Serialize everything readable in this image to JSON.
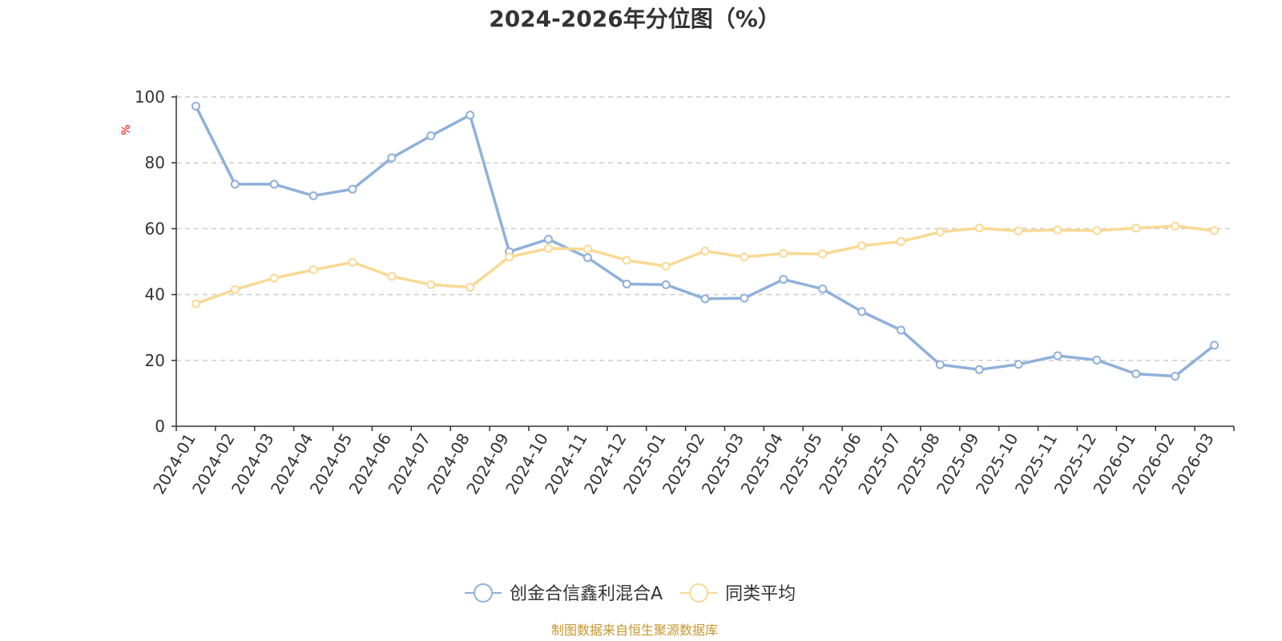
{
  "chart_data": {
    "type": "line",
    "title": "2024-2026年分位图（%）",
    "ylabel": "%",
    "ylim": [
      0,
      100
    ],
    "yticks": [
      0,
      20,
      40,
      60,
      80,
      100
    ],
    "grid": true,
    "legend_position": "bottom-center",
    "categories": [
      "2024-01",
      "2024-02",
      "2024-03",
      "2024-04",
      "2024-05",
      "2024-06",
      "2024-07",
      "2024-08",
      "2024-09",
      "2024-10",
      "2024-11",
      "2024-12",
      "2025-01",
      "2025-02",
      "2025-03",
      "2025-04",
      "2025-05",
      "2025-06",
      "2025-07",
      "2025-08",
      "2025-09",
      "2025-10",
      "2025-11",
      "2025-12",
      "2026-01",
      "2026-02",
      "2026-03"
    ],
    "series": [
      {
        "name": "创金合信鑫利混合A",
        "color": "#8fb0da",
        "values": [
          97.2,
          73.5,
          73.5,
          70.0,
          72.0,
          81.5,
          88.2,
          94.5,
          53.0,
          56.8,
          51.2,
          43.2,
          43.0,
          38.7,
          38.9,
          44.6,
          41.7,
          34.8,
          29.2,
          18.7,
          17.2,
          18.8,
          21.4,
          20.1,
          15.9,
          15.2,
          24.6
        ]
      },
      {
        "name": "同类平均",
        "color": "#f9d994",
        "values": [
          37.2,
          41.5,
          45.0,
          47.5,
          49.8,
          45.5,
          43.0,
          42.2,
          51.4,
          54.0,
          53.8,
          50.4,
          48.6,
          53.2,
          51.4,
          52.5,
          52.3,
          54.8,
          56.1,
          59.0,
          60.2,
          59.3,
          59.6,
          59.4,
          60.2,
          60.8,
          59.4
        ]
      }
    ]
  },
  "source_text": "制图数据来自恒生聚源数据库"
}
